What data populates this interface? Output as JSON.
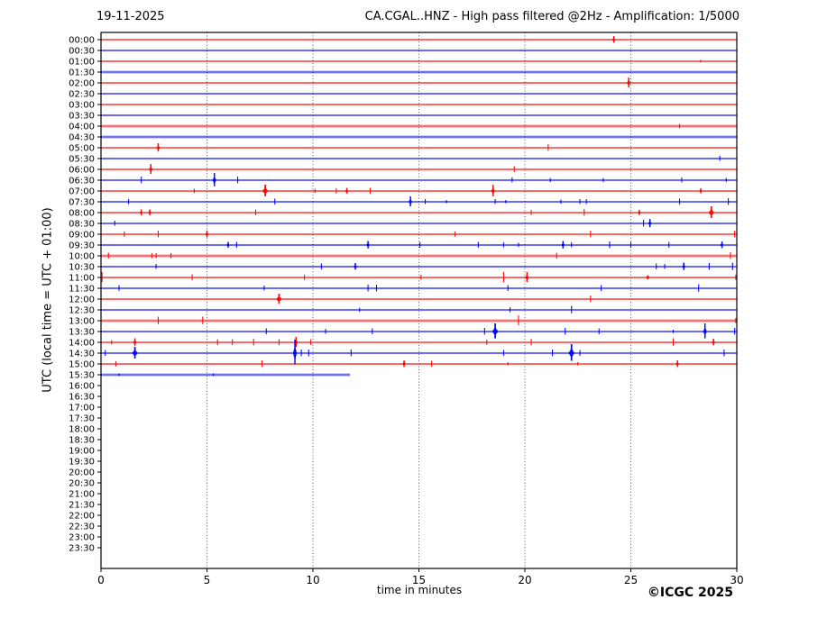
{
  "page": {
    "date_label": "19-11-2025",
    "title": "CA.CGAL..HNZ - High pass filtered @2Hz - Amplification: 1/5000",
    "copyright": "©ICGC 2025"
  },
  "chart_data": {
    "type": "line",
    "subtype": "helicorder-seismogram",
    "title": "CA.CGAL..HNZ - High pass filtered @2Hz - Amplification: 1/5000",
    "date": "19-11-2025",
    "xlabel": "time in minutes",
    "ylabel": "UTC (local time = UTC + 01:00)",
    "x_range": [
      0,
      30
    ],
    "x_ticks": [
      0,
      5,
      10,
      15,
      20,
      25,
      30
    ],
    "x_gridlines": [
      5,
      10,
      15,
      20,
      25
    ],
    "grid_on": true,
    "legend": "none",
    "trace_colors": {
      "red": "#ff0000",
      "blue": "#0000ff"
    },
    "grid_color": "#444444",
    "frame_color": "#000000",
    "spike_format": "[minute, half_amplitude_px, weight(1=thin,2=medium,3=fat)]",
    "rows": [
      {
        "time": "00:00",
        "color": "red",
        "end": 30,
        "fuzzy": false,
        "spikes": [
          [
            24.2,
            4,
            2
          ]
        ]
      },
      {
        "time": "00:30",
        "color": "blue",
        "end": 30,
        "fuzzy": false,
        "spikes": []
      },
      {
        "time": "01:00",
        "color": "red",
        "end": 30,
        "fuzzy": false,
        "spikes": [
          [
            28.3,
            1.5,
            1
          ]
        ]
      },
      {
        "time": "01:30",
        "color": "blue",
        "end": 30,
        "fuzzy": true,
        "spikes": []
      },
      {
        "time": "02:00",
        "color": "red",
        "end": 30,
        "fuzzy": false,
        "spikes": [
          [
            24.9,
            6,
            2
          ]
        ]
      },
      {
        "time": "02:30",
        "color": "blue",
        "end": 30,
        "fuzzy": false,
        "spikes": []
      },
      {
        "time": "03:00",
        "color": "red",
        "end": 30,
        "fuzzy": false,
        "spikes": []
      },
      {
        "time": "03:30",
        "color": "blue",
        "end": 30,
        "fuzzy": false,
        "spikes": []
      },
      {
        "time": "04:00",
        "color": "red",
        "end": 30,
        "fuzzy": true,
        "spikes": [
          [
            27.3,
            2.5,
            1
          ]
        ]
      },
      {
        "time": "04:30",
        "color": "blue",
        "end": 30,
        "fuzzy": true,
        "spikes": []
      },
      {
        "time": "05:00",
        "color": "red",
        "end": 30,
        "fuzzy": false,
        "spikes": [
          [
            2.7,
            5,
            2
          ],
          [
            21.1,
            4,
            1
          ]
        ]
      },
      {
        "time": "05:30",
        "color": "blue",
        "end": 30,
        "fuzzy": false,
        "spikes": [
          [
            29.2,
            3,
            1
          ]
        ]
      },
      {
        "time": "06:00",
        "color": "red",
        "end": 30,
        "fuzzy": false,
        "spikes": [
          [
            2.35,
            6,
            2
          ],
          [
            19.5,
            3.5,
            1
          ]
        ]
      },
      {
        "time": "06:30",
        "color": "blue",
        "end": 30,
        "fuzzy": false,
        "spikes": [
          [
            1.9,
            4,
            1
          ],
          [
            5.35,
            8,
            2
          ],
          [
            6.45,
            4,
            1
          ],
          [
            19.4,
            3,
            1
          ],
          [
            21.2,
            2.5,
            1
          ],
          [
            23.7,
            2.5,
            1
          ],
          [
            27.4,
            3,
            1
          ],
          [
            29.5,
            2.5,
            1
          ]
        ]
      },
      {
        "time": "07:00",
        "color": "red",
        "end": 30,
        "fuzzy": false,
        "spikes": [
          [
            4.4,
            2.5,
            1
          ],
          [
            7.75,
            7,
            3
          ],
          [
            10.1,
            2.5,
            1
          ],
          [
            11.1,
            3,
            1
          ],
          [
            11.6,
            3.5,
            2
          ],
          [
            12.7,
            3.5,
            1
          ],
          [
            18.5,
            7,
            2
          ],
          [
            28.3,
            3,
            2
          ]
        ]
      },
      {
        "time": "07:30",
        "color": "blue",
        "end": 30,
        "fuzzy": false,
        "spikes": [
          [
            1.3,
            3,
            1
          ],
          [
            8.2,
            3.5,
            1
          ],
          [
            14.6,
            6,
            2
          ],
          [
            15.3,
            3,
            1
          ],
          [
            16.3,
            2,
            1
          ],
          [
            18.6,
            3,
            1
          ],
          [
            19.1,
            2,
            1
          ],
          [
            21.7,
            2.5,
            1
          ],
          [
            22.6,
            3,
            1
          ],
          [
            22.9,
            3,
            1
          ],
          [
            27.3,
            3.5,
            1
          ],
          [
            29.6,
            4,
            1
          ]
        ]
      },
      {
        "time": "08:00",
        "color": "red",
        "end": 30,
        "fuzzy": false,
        "spikes": [
          [
            1.9,
            3.5,
            2
          ],
          [
            2.3,
            3.5,
            2
          ],
          [
            7.3,
            3.5,
            1
          ],
          [
            20.3,
            3,
            1
          ],
          [
            22.8,
            4,
            1
          ],
          [
            25.4,
            3,
            2
          ],
          [
            28.8,
            7,
            3
          ]
        ]
      },
      {
        "time": "08:30",
        "color": "blue",
        "end": 30,
        "fuzzy": false,
        "spikes": [
          [
            0.65,
            3,
            1
          ],
          [
            25.6,
            4,
            1
          ],
          [
            25.9,
            5,
            2
          ]
        ]
      },
      {
        "time": "09:00",
        "color": "red",
        "end": 30,
        "fuzzy": false,
        "spikes": [
          [
            1.1,
            3,
            1
          ],
          [
            2.7,
            4,
            1
          ],
          [
            5.0,
            4,
            2
          ],
          [
            16.7,
            3,
            1
          ],
          [
            23.1,
            4,
            1
          ],
          [
            29.9,
            4,
            1
          ]
        ]
      },
      {
        "time": "09:30",
        "color": "blue",
        "end": 30,
        "fuzzy": false,
        "spikes": [
          [
            6.0,
            3.5,
            2
          ],
          [
            6.4,
            3.5,
            1
          ],
          [
            12.6,
            4.5,
            2
          ],
          [
            15.05,
            3.5,
            1
          ],
          [
            17.8,
            3.5,
            1
          ],
          [
            19.0,
            3,
            1
          ],
          [
            19.7,
            2.5,
            1
          ],
          [
            21.8,
            4.5,
            2
          ],
          [
            22.2,
            3,
            1
          ],
          [
            24.0,
            4,
            1
          ],
          [
            25.0,
            3.5,
            1
          ],
          [
            26.8,
            3.5,
            1
          ],
          [
            29.3,
            4,
            2
          ]
        ]
      },
      {
        "time": "10:00",
        "color": "red",
        "end": 30,
        "fuzzy": true,
        "spikes": [
          [
            0.35,
            3.5,
            1
          ],
          [
            2.4,
            3,
            1
          ],
          [
            2.6,
            3,
            1
          ],
          [
            3.3,
            3,
            1
          ],
          [
            21.5,
            3.5,
            1
          ],
          [
            29.7,
            4,
            1
          ]
        ]
      },
      {
        "time": "10:30",
        "color": "blue",
        "end": 30,
        "fuzzy": false,
        "spikes": [
          [
            2.6,
            3,
            1
          ],
          [
            10.4,
            3.5,
            1
          ],
          [
            12.0,
            4,
            2
          ],
          [
            26.2,
            3.5,
            1
          ],
          [
            26.6,
            3,
            1
          ],
          [
            27.5,
            4.5,
            2
          ],
          [
            28.7,
            4,
            1
          ],
          [
            29.8,
            4.5,
            1
          ]
        ]
      },
      {
        "time": "11:00",
        "color": "red",
        "end": 30,
        "fuzzy": false,
        "spikes": [
          [
            0.05,
            6,
            1
          ],
          [
            4.3,
            3.5,
            1
          ],
          [
            9.6,
            3,
            1
          ],
          [
            15.1,
            3,
            1
          ],
          [
            19.0,
            6,
            1
          ],
          [
            20.1,
            6,
            2
          ],
          [
            25.8,
            2.5,
            3
          ],
          [
            29.95,
            3,
            1
          ]
        ]
      },
      {
        "time": "11:30",
        "color": "blue",
        "end": 30,
        "fuzzy": false,
        "spikes": [
          [
            0.85,
            3.5,
            1
          ],
          [
            7.7,
            3,
            1
          ],
          [
            12.6,
            4,
            1
          ],
          [
            13.0,
            4,
            1
          ],
          [
            19.2,
            3.5,
            1
          ],
          [
            23.6,
            3.5,
            1
          ],
          [
            28.2,
            4.5,
            1
          ]
        ]
      },
      {
        "time": "12:00",
        "color": "red",
        "end": 30,
        "fuzzy": false,
        "spikes": [
          [
            8.4,
            6,
            3
          ],
          [
            23.1,
            4,
            1
          ]
        ]
      },
      {
        "time": "12:30",
        "color": "blue",
        "end": 30,
        "fuzzy": false,
        "spikes": [
          [
            12.2,
            2.5,
            1
          ],
          [
            19.3,
            3,
            1
          ],
          [
            22.2,
            4.5,
            1
          ]
        ]
      },
      {
        "time": "13:00",
        "color": "red",
        "end": 30,
        "fuzzy": true,
        "spikes": [
          [
            2.7,
            4.5,
            1
          ],
          [
            4.8,
            4.5,
            1
          ],
          [
            19.7,
            6,
            1
          ],
          [
            29.95,
            3,
            1
          ]
        ]
      },
      {
        "time": "13:30",
        "color": "blue",
        "end": 30,
        "fuzzy": false,
        "spikes": [
          [
            7.8,
            3.5,
            1
          ],
          [
            10.6,
            3,
            1
          ],
          [
            12.8,
            3.5,
            1
          ],
          [
            18.1,
            4,
            1
          ],
          [
            18.6,
            9,
            3
          ],
          [
            21.9,
            4,
            1
          ],
          [
            23.5,
            3.5,
            1
          ],
          [
            27.0,
            2,
            1
          ],
          [
            28.5,
            9,
            2
          ],
          [
            29.9,
            4,
            1
          ]
        ]
      },
      {
        "time": "14:00",
        "color": "red",
        "end": 30,
        "fuzzy": false,
        "spikes": [
          [
            0.5,
            2.5,
            1
          ],
          [
            1.6,
            4.5,
            2
          ],
          [
            5.5,
            3.5,
            1
          ],
          [
            6.2,
            3.5,
            1
          ],
          [
            7.2,
            4,
            1
          ],
          [
            8.4,
            3.5,
            1
          ],
          [
            9.2,
            6,
            2
          ],
          [
            9.9,
            3.5,
            1
          ],
          [
            18.2,
            3,
            1
          ],
          [
            20.3,
            4,
            1
          ],
          [
            27.0,
            4.5,
            1
          ],
          [
            28.9,
            4,
            2
          ]
        ]
      },
      {
        "time": "14:30",
        "color": "blue",
        "end": 30,
        "fuzzy": false,
        "spikes": [
          [
            0.2,
            3.5,
            1
          ],
          [
            1.6,
            7,
            3
          ],
          [
            9.15,
            15,
            2
          ],
          [
            9.45,
            4,
            1
          ],
          [
            9.8,
            4,
            1
          ],
          [
            11.8,
            4,
            1
          ],
          [
            19.0,
            3.5,
            1
          ],
          [
            21.3,
            4,
            1
          ],
          [
            22.2,
            10,
            3
          ],
          [
            22.6,
            3.5,
            1
          ],
          [
            29.4,
            4,
            1
          ]
        ]
      },
      {
        "time": "15:00",
        "color": "red",
        "end": 30,
        "fuzzy": false,
        "spikes": [
          [
            0.7,
            3,
            1
          ],
          [
            7.6,
            4,
            1
          ],
          [
            14.3,
            4,
            2
          ],
          [
            15.6,
            3.5,
            1
          ],
          [
            19.2,
            2,
            1
          ],
          [
            22.5,
            2,
            1
          ],
          [
            27.2,
            4,
            2
          ]
        ]
      },
      {
        "time": "15:30",
        "color": "blue",
        "end": 11.75,
        "fuzzy": true,
        "spikes": [
          [
            0.85,
            1.5,
            1
          ],
          [
            5.3,
            1.5,
            1
          ]
        ]
      },
      {
        "time": "16:00",
        "color": "red",
        "end": 0,
        "fuzzy": false,
        "spikes": []
      },
      {
        "time": "16:30",
        "color": "blue",
        "end": 0,
        "fuzzy": false,
        "spikes": []
      },
      {
        "time": "17:00",
        "color": "red",
        "end": 0,
        "fuzzy": false,
        "spikes": []
      },
      {
        "time": "17:30",
        "color": "blue",
        "end": 0,
        "fuzzy": false,
        "spikes": []
      },
      {
        "time": "18:00",
        "color": "red",
        "end": 0,
        "fuzzy": false,
        "spikes": []
      },
      {
        "time": "18:30",
        "color": "blue",
        "end": 0,
        "fuzzy": false,
        "spikes": []
      },
      {
        "time": "19:00",
        "color": "red",
        "end": 0,
        "fuzzy": false,
        "spikes": []
      },
      {
        "time": "19:30",
        "color": "blue",
        "end": 0,
        "fuzzy": false,
        "spikes": []
      },
      {
        "time": "20:00",
        "color": "red",
        "end": 0,
        "fuzzy": false,
        "spikes": []
      },
      {
        "time": "20:30",
        "color": "blue",
        "end": 0,
        "fuzzy": false,
        "spikes": []
      },
      {
        "time": "21:00",
        "color": "red",
        "end": 0,
        "fuzzy": false,
        "spikes": []
      },
      {
        "time": "21:30",
        "color": "blue",
        "end": 0,
        "fuzzy": false,
        "spikes": []
      },
      {
        "time": "22:00",
        "color": "red",
        "end": 0,
        "fuzzy": false,
        "spikes": []
      },
      {
        "time": "22:30",
        "color": "blue",
        "end": 0,
        "fuzzy": false,
        "spikes": []
      },
      {
        "time": "23:00",
        "color": "red",
        "end": 0,
        "fuzzy": false,
        "spikes": []
      },
      {
        "time": "23:30",
        "color": "blue",
        "end": 0,
        "fuzzy": false,
        "spikes": []
      }
    ],
    "copyright": "©ICGC 2025"
  }
}
